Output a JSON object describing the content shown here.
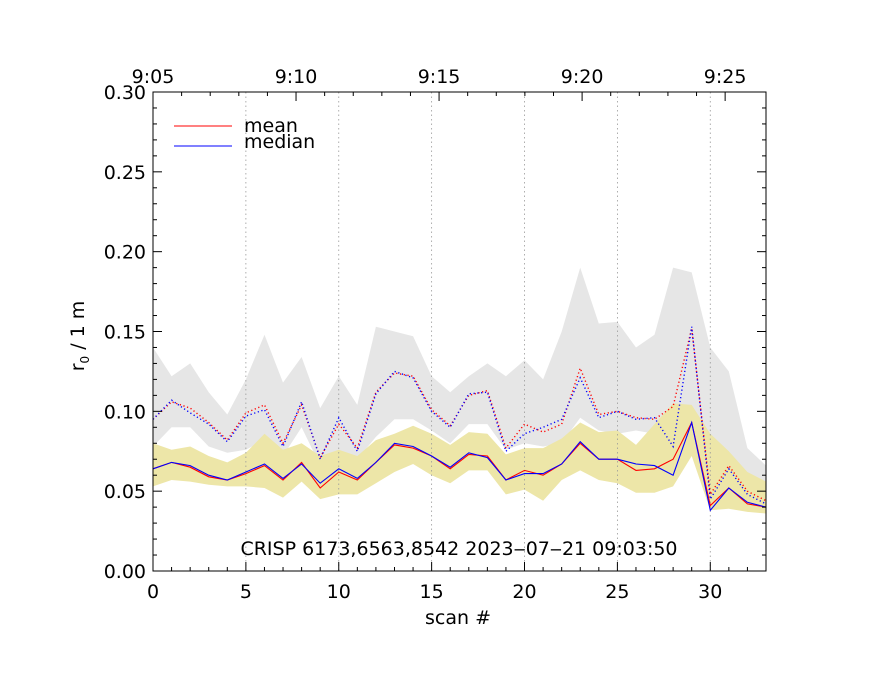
{
  "chart_data": {
    "type": "line",
    "xlabel": "scan #",
    "ylabel": "r",
    "ylabel_subscript": "0",
    "ylabel_suffix": " / 1 m",
    "xlim": [
      0,
      33
    ],
    "ylim": [
      0,
      0.3
    ],
    "x_ticks": [
      0,
      5,
      10,
      15,
      20,
      25,
      30
    ],
    "x_tick_labels": [
      "0",
      "5",
      "10",
      "15",
      "20",
      "25",
      "30"
    ],
    "y_ticks": [
      0.0,
      0.05,
      0.1,
      0.15,
      0.2,
      0.25,
      0.3
    ],
    "y_tick_labels": [
      "0.00",
      "0.05",
      "0.10",
      "0.15",
      "0.20",
      "0.25",
      "0.30"
    ],
    "top_axis": {
      "ticks": [
        0,
        7.7,
        15.4,
        23.1,
        30.8
      ],
      "labels": [
        "9:05",
        "9:10",
        "9:15",
        "9:20",
        "9:25"
      ]
    },
    "vertical_gridlines_x": [
      5,
      10,
      15,
      20,
      25,
      30
    ],
    "annotation": "CRISP 6173,6563,8542 2023‒07‒21 09:03:50",
    "legend": [
      {
        "label": "mean",
        "color": "#ff0000"
      },
      {
        "label": "median",
        "color": "#0000ff"
      }
    ],
    "x": [
      0,
      1,
      2,
      3,
      4,
      5,
      6,
      7,
      8,
      9,
      10,
      11,
      12,
      13,
      14,
      15,
      16,
      17,
      18,
      19,
      20,
      21,
      22,
      23,
      24,
      25,
      26,
      27,
      28,
      29,
      30,
      31,
      32,
      33
    ],
    "series": [
      {
        "name": "mean",
        "style": "solid",
        "color": "#ff0000",
        "values": [
          0.064,
          0.068,
          0.065,
          0.059,
          0.057,
          0.061,
          0.066,
          0.057,
          0.068,
          0.052,
          0.062,
          0.057,
          0.068,
          0.079,
          0.077,
          0.072,
          0.064,
          0.073,
          0.072,
          0.057,
          0.063,
          0.06,
          0.067,
          0.08,
          0.07,
          0.07,
          0.063,
          0.064,
          0.07,
          0.093,
          0.041,
          0.052,
          0.042,
          0.04
        ]
      },
      {
        "name": "median",
        "style": "solid",
        "color": "#0000ff",
        "values": [
          0.064,
          0.068,
          0.066,
          0.06,
          0.057,
          0.062,
          0.067,
          0.058,
          0.067,
          0.055,
          0.064,
          0.058,
          0.068,
          0.08,
          0.078,
          0.072,
          0.065,
          0.074,
          0.071,
          0.057,
          0.061,
          0.061,
          0.067,
          0.081,
          0.07,
          0.07,
          0.067,
          0.066,
          0.06,
          0.093,
          0.038,
          0.052,
          0.043,
          0.04
        ]
      },
      {
        "name": "mean upper",
        "style": "dotted",
        "color": "#ff0000",
        "values": [
          0.095,
          0.106,
          0.102,
          0.093,
          0.082,
          0.099,
          0.104,
          0.08,
          0.104,
          0.071,
          0.092,
          0.077,
          0.112,
          0.124,
          0.122,
          0.101,
          0.091,
          0.11,
          0.113,
          0.077,
          0.092,
          0.087,
          0.092,
          0.127,
          0.098,
          0.1,
          0.096,
          0.095,
          0.103,
          0.152,
          0.048,
          0.066,
          0.05,
          0.044
        ]
      },
      {
        "name": "median upper",
        "style": "dotted",
        "color": "#0000ff",
        "values": [
          0.095,
          0.107,
          0.099,
          0.092,
          0.081,
          0.097,
          0.101,
          0.078,
          0.106,
          0.07,
          0.096,
          0.075,
          0.111,
          0.125,
          0.121,
          0.1,
          0.09,
          0.111,
          0.112,
          0.075,
          0.086,
          0.09,
          0.095,
          0.121,
          0.096,
          0.1,
          0.095,
          0.096,
          0.078,
          0.153,
          0.045,
          0.064,
          0.048,
          0.042
        ]
      }
    ],
    "bands": [
      {
        "name": "upper spread",
        "color": "#e6e6e6",
        "upper": [
          0.14,
          0.122,
          0.13,
          0.112,
          0.098,
          0.12,
          0.148,
          0.118,
          0.134,
          0.102,
          0.122,
          0.104,
          0.153,
          0.15,
          0.147,
          0.122,
          0.112,
          0.122,
          0.13,
          0.122,
          0.132,
          0.12,
          0.15,
          0.19,
          0.155,
          0.156,
          0.14,
          0.148,
          0.19,
          0.187,
          0.14,
          0.125,
          0.077,
          0.066
        ],
        "lower": [
          0.078,
          0.09,
          0.09,
          0.078,
          0.074,
          0.076,
          0.082,
          0.072,
          0.09,
          0.066,
          0.074,
          0.07,
          0.084,
          0.095,
          0.095,
          0.088,
          0.08,
          0.092,
          0.092,
          0.076,
          0.08,
          0.078,
          0.08,
          0.096,
          0.088,
          0.086,
          0.088,
          0.086,
          0.086,
          0.1,
          0.06,
          0.056,
          0.05,
          0.046
        ]
      },
      {
        "name": "lower spread",
        "color": "#ede6a8",
        "upper": [
          0.08,
          0.076,
          0.078,
          0.072,
          0.068,
          0.074,
          0.086,
          0.076,
          0.08,
          0.072,
          0.076,
          0.072,
          0.082,
          0.086,
          0.091,
          0.086,
          0.079,
          0.087,
          0.086,
          0.073,
          0.077,
          0.077,
          0.083,
          0.093,
          0.087,
          0.088,
          0.079,
          0.092,
          0.105,
          0.104,
          0.086,
          0.075,
          0.062,
          0.056
        ]
      },
      {
        "name": "lower spread base",
        "color": "#ede6a8",
        "lower": [
          0.053,
          0.057,
          0.056,
          0.054,
          0.053,
          0.053,
          0.052,
          0.046,
          0.056,
          0.045,
          0.048,
          0.048,
          0.055,
          0.062,
          0.067,
          0.06,
          0.055,
          0.063,
          0.063,
          0.048,
          0.051,
          0.044,
          0.057,
          0.063,
          0.057,
          0.055,
          0.049,
          0.049,
          0.053,
          0.072,
          0.038,
          0.039,
          0.037,
          0.036
        ]
      }
    ]
  }
}
